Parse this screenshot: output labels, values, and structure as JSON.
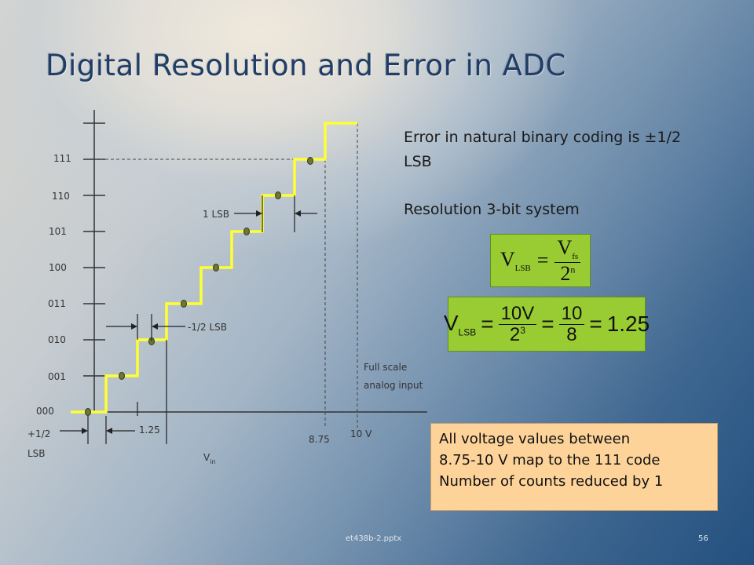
{
  "slide": {
    "title": "Digital Resolution and Error in ADC",
    "error_text": "Error in natural binary coding is ±1/2 LSB",
    "resolution_text": "Resolution 3-bit system",
    "note_lines": [
      "All voltage values between",
      "8.75-10 V map to the 111 code",
      "Number of counts reduced by 1"
    ],
    "footer_file": "et438b-2.pptx",
    "page_number": "56"
  },
  "equation1": {
    "lhs": "V",
    "lhs_sub": "LSB",
    "op": "=",
    "num": "V",
    "num_sub": "fs",
    "den": "2",
    "den_sup": "n"
  },
  "equation2": {
    "lhs": "V",
    "lhs_sub": "LSB",
    "op1": "=",
    "num1": "10V",
    "den1": "2",
    "den1_sup": "3",
    "op2": "=",
    "num2": "10",
    "den2": "8",
    "op3": "=",
    "result": "1.25"
  },
  "colors": {
    "staircase": "#ffff33",
    "equation_box": "#99cc33",
    "note_box": "#fdd39a",
    "title": "#1f3d66",
    "dot": "#6b7a2e"
  },
  "diagram": {
    "codes": [
      "000",
      "001",
      "010",
      "011",
      "100",
      "101",
      "110",
      "111"
    ],
    "labels": {
      "one_lsb": "1 LSB",
      "half_lsb": "-1/2 LSB",
      "plus_half_lsb_1": "+1/2",
      "plus_half_lsb_2": "LSB",
      "v_125": "1.25",
      "v_875": "8.75",
      "v_10": "10 V",
      "full_scale_1": "Full scale",
      "full_scale_2": "analog input",
      "vin": "V",
      "vin_sub": "in"
    }
  }
}
